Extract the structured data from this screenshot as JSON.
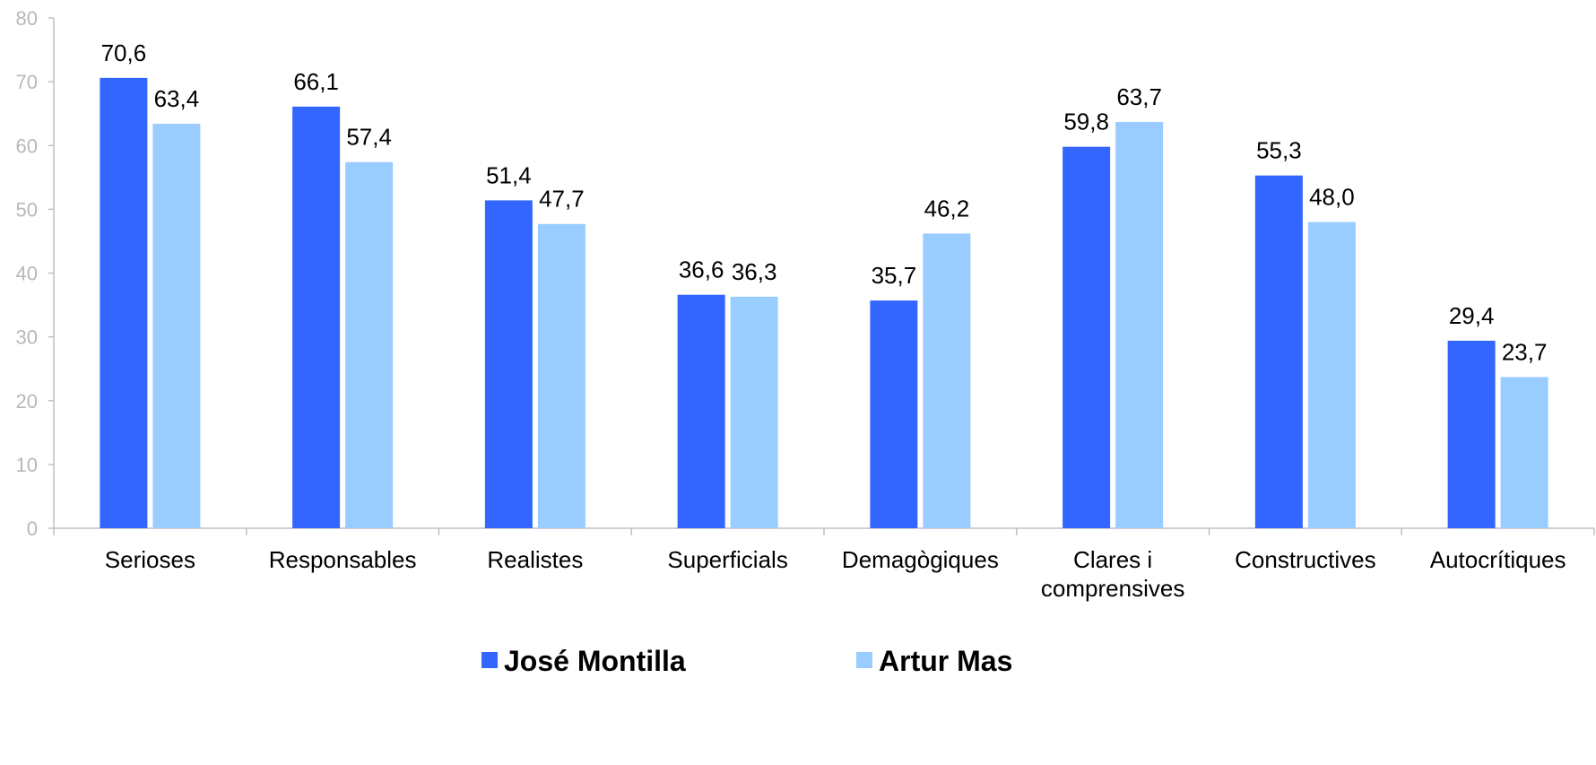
{
  "chart_data": {
    "type": "bar",
    "categories": [
      [
        "Serioses"
      ],
      [
        "Responsables"
      ],
      [
        "Realistes"
      ],
      [
        "Superficials"
      ],
      [
        "Demagògiques"
      ],
      [
        "Clares i",
        "comprensives"
      ],
      [
        "Constructives"
      ],
      [
        "Autocrítiques"
      ]
    ],
    "series": [
      {
        "name": "José Montilla",
        "color": "#3366ff",
        "values": [
          70.6,
          66.1,
          51.4,
          36.6,
          35.7,
          59.8,
          55.3,
          29.4
        ],
        "labels": [
          "70,6",
          "66,1",
          "51,4",
          "36,6",
          "35,7",
          "59,8",
          "55,3",
          "29,4"
        ]
      },
      {
        "name": "Artur Mas",
        "color": "#99ccff",
        "values": [
          63.4,
          57.4,
          47.7,
          36.3,
          46.2,
          63.7,
          48.0,
          23.7
        ],
        "labels": [
          "63,4",
          "57,4",
          "47,7",
          "36,3",
          "46,2",
          "63,7",
          "48,0",
          "23,7"
        ]
      }
    ],
    "ylim": [
      0,
      80
    ],
    "yticks": [
      0,
      10,
      20,
      30,
      40,
      50,
      60,
      70,
      80
    ],
    "grid": false,
    "legend_position": "bottom",
    "axis_color": "#c0c0c0"
  }
}
